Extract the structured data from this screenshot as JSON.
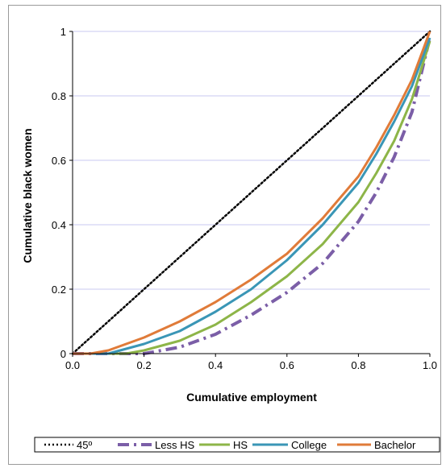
{
  "chart_data": {
    "type": "line",
    "xlabel": "Cumulative employment",
    "ylabel": "Cumulative black women",
    "xlim": [
      0,
      1
    ],
    "ylim": [
      0,
      1
    ],
    "x_ticks": [
      "0.0",
      "0.2",
      "0.4",
      "0.6",
      "0.8",
      "1.0"
    ],
    "y_ticks": [
      "0",
      "0.2",
      "0.4",
      "0.6",
      "0.8",
      "1"
    ],
    "grid": "horizontal",
    "legend_position": "bottom",
    "series": [
      {
        "name": "45º",
        "color": "#000000",
        "style": "dotted",
        "x": [
          0,
          1
        ],
        "y": [
          0,
          1
        ]
      },
      {
        "name": "Less HS",
        "color": "#7b5ea7",
        "style": "dashdot",
        "x": [
          0,
          0.2,
          0.3,
          0.4,
          0.5,
          0.6,
          0.7,
          0.8,
          0.85,
          0.9,
          0.95,
          1.0
        ],
        "y": [
          0,
          0,
          0.02,
          0.06,
          0.12,
          0.19,
          0.28,
          0.41,
          0.5,
          0.61,
          0.75,
          0.98
        ]
      },
      {
        "name": "HS",
        "color": "#8db548",
        "style": "solid",
        "x": [
          0,
          0.15,
          0.2,
          0.3,
          0.4,
          0.5,
          0.6,
          0.7,
          0.8,
          0.85,
          0.9,
          0.95,
          1.0
        ],
        "y": [
          0,
          0,
          0.01,
          0.04,
          0.09,
          0.16,
          0.24,
          0.34,
          0.47,
          0.56,
          0.66,
          0.79,
          0.97
        ]
      },
      {
        "name": "College",
        "color": "#3a96b6",
        "style": "solid",
        "x": [
          0,
          0.1,
          0.2,
          0.3,
          0.4,
          0.5,
          0.6,
          0.7,
          0.8,
          0.85,
          0.9,
          0.95,
          1.0
        ],
        "y": [
          0,
          0,
          0.03,
          0.07,
          0.13,
          0.2,
          0.29,
          0.4,
          0.53,
          0.62,
          0.72,
          0.83,
          0.98
        ]
      },
      {
        "name": "Bachelor",
        "color": "#e07b39",
        "style": "solid",
        "x": [
          0,
          0.05,
          0.1,
          0.2,
          0.3,
          0.4,
          0.5,
          0.6,
          0.7,
          0.8,
          0.85,
          0.9,
          0.95,
          1.0
        ],
        "y": [
          0,
          0,
          0.01,
          0.05,
          0.1,
          0.16,
          0.23,
          0.31,
          0.42,
          0.55,
          0.64,
          0.74,
          0.85,
          1.0
        ]
      }
    ]
  }
}
